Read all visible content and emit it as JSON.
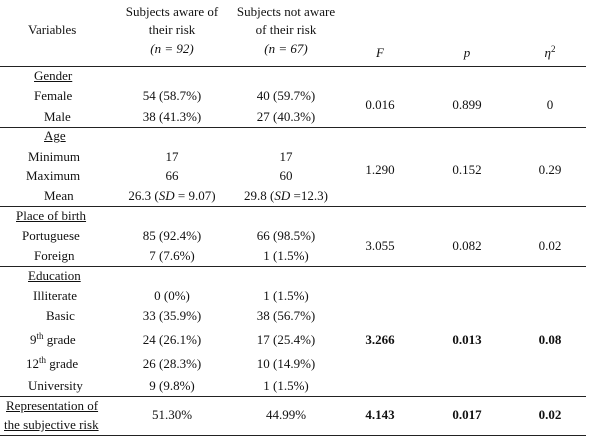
{
  "header": {
    "variables": "Variables",
    "aware_1": "Subjects aware of",
    "aware_2": "their risk",
    "aware_n": "(n = 92)",
    "notaware_1": "Subjects not aware",
    "notaware_2": "of their risk",
    "notaware_n": "(n = 67)",
    "f": "F",
    "p": "p",
    "eta": "η",
    "eta_sup": "2"
  },
  "gender": {
    "title": "Gender",
    "female_label": "Female",
    "female_aware": "54 (58.7%)",
    "female_notaware": "40 (59.7%)",
    "male_label": "Male",
    "male_aware": "38 (41.3%)",
    "male_notaware": "27 (40.3%)",
    "f": "0.016",
    "p": "0.899",
    "eta": "0"
  },
  "age": {
    "title": "Age",
    "min_label": "Minimum",
    "min_aware": "17",
    "min_notaware": "17",
    "max_label": "Maximum",
    "max_aware": "66",
    "max_notaware": "60",
    "mean_label": "Mean",
    "mean_aware_a": "26.3 (",
    "mean_aware_sd": "SD",
    "mean_aware_b": " = 9.07)",
    "mean_notaware_a": "29.8 (",
    "mean_notaware_sd": "SD",
    "mean_notaware_b": " =12.3)",
    "f": "1.290",
    "p": "0.152",
    "eta": "0.29"
  },
  "birth": {
    "title": "Place of birth",
    "port_label": "Portuguese",
    "port_aware": "85 (92.4%)",
    "port_notaware": "66 (98.5%)",
    "foreign_label": "Foreign",
    "foreign_aware": "7 (7.6%)",
    "foreign_notaware": "1 (1.5%)",
    "f": "3.055",
    "p": "0.082",
    "eta": "0.02"
  },
  "education": {
    "title": "Education",
    "illiterate_label": "Illiterate",
    "illiterate_aware": "0 (0%)",
    "illiterate_notaware": "1 (1.5%)",
    "basic_label": "Basic",
    "basic_aware": "33 (35.9%)",
    "basic_notaware": "38 (56.7%)",
    "ninth_num": "9",
    "ninth_sup": "th",
    "ninth_rest": " grade",
    "ninth_aware": "24 (26.1%)",
    "ninth_notaware": "17 (25.4%)",
    "twelfth_num": "12",
    "twelfth_sup": "th",
    "twelfth_rest": " grade",
    "twelfth_aware": "26 (28.3%)",
    "twelfth_notaware": "10 (14.9%)",
    "univ_label": "University",
    "univ_aware": "9 (9.8%)",
    "univ_notaware": "1 (1.5%)",
    "f": "3.266",
    "p": "0.013",
    "eta": "0.08"
  },
  "risk": {
    "title_1": "Representation of",
    "title_2": "the subjective risk",
    "aware": "51.30%",
    "notaware": "44.99%",
    "f": "4.143",
    "p": "0.017",
    "eta": "0.02"
  }
}
